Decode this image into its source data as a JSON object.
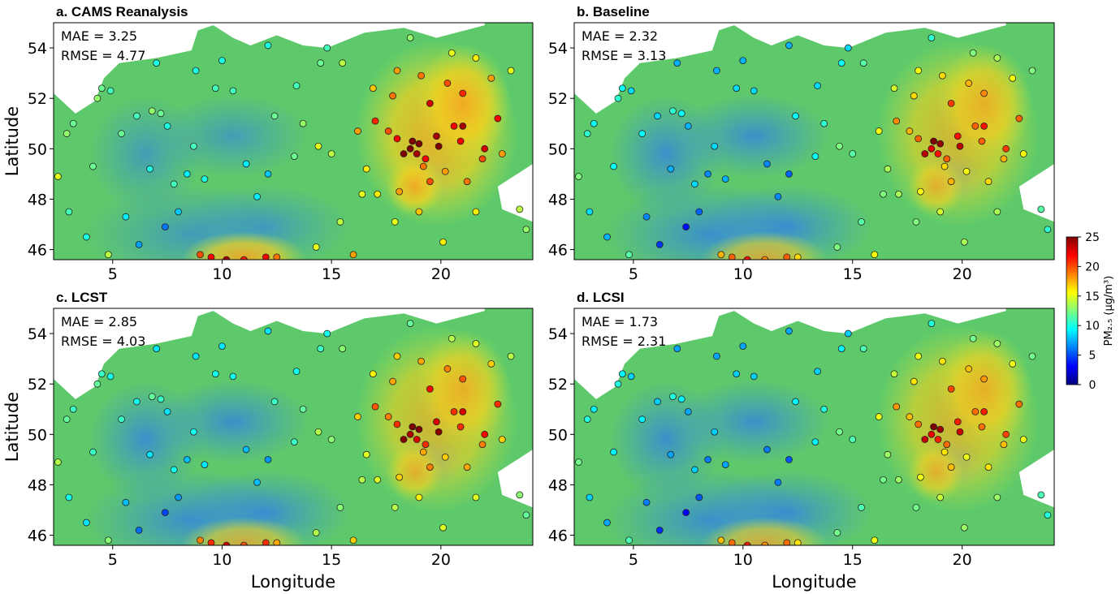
{
  "figure": {
    "x_axis_label": "Longitude",
    "y_axis_label": "Latitude",
    "lon_range": [
      2.3,
      24.2
    ],
    "lat_range": [
      45.6,
      55.0
    ],
    "lon_ticks": [
      5,
      10,
      15,
      20
    ],
    "lat_ticks": [
      46,
      48,
      50,
      52,
      54
    ],
    "colorbar": {
      "label": "PM₂.₅ (μg/m³)",
      "min": 0,
      "max": 25,
      "ticks": [
        0,
        5,
        10,
        15,
        20,
        25
      ],
      "colormap": "jet",
      "colors": [
        "#00007f",
        "#0000ff",
        "#007fff",
        "#00ffff",
        "#7fff7f",
        "#ffff00",
        "#ff7f00",
        "#ff0000",
        "#7f0000"
      ]
    },
    "base_colors": {
      "land_green": "#5ec96a",
      "low_blue": "#3d8ee0",
      "high_orange": "#f5a623",
      "sea": "#ffffff"
    }
  },
  "panels": [
    {
      "id": "a",
      "title": "a. CAMS Reanalysis",
      "mae_label": "MAE = 3.25",
      "rmse_label": "RMSE =  4.77",
      "mae": 3.25,
      "rmse": 4.77,
      "show_ylabel": true,
      "show_xlabel": false
    },
    {
      "id": "b",
      "title": "b. Baseline",
      "mae_label": "MAE = 2.32",
      "rmse_label": "RMSE =  3.13",
      "mae": 2.32,
      "rmse": 3.13,
      "show_ylabel": false,
      "show_xlabel": false
    },
    {
      "id": "c",
      "title": "c. LCST",
      "mae_label": "MAE = 2.85",
      "rmse_label": "RMSE =  4.03",
      "mae": 2.85,
      "rmse": 4.03,
      "show_ylabel": true,
      "show_xlabel": true
    },
    {
      "id": "d",
      "title": "d. LCSI",
      "mae_label": "MAE = 1.73",
      "rmse_label": "RMSE =  2.31",
      "mae": 1.73,
      "rmse": 2.31,
      "show_ylabel": false,
      "show_xlabel": true
    }
  ],
  "stations": [
    {
      "lon": 4.5,
      "lat": 52.4,
      "v": 12
    },
    {
      "lon": 4.3,
      "lat": 52.0,
      "v": 13
    },
    {
      "lon": 4.9,
      "lat": 52.3,
      "v": 11
    },
    {
      "lon": 3.2,
      "lat": 51.0,
      "v": 12
    },
    {
      "lon": 2.9,
      "lat": 50.6,
      "v": 13
    },
    {
      "lon": 2.5,
      "lat": 48.9,
      "v": 15
    },
    {
      "lon": 3.0,
      "lat": 47.5,
      "v": 11
    },
    {
      "lon": 3.8,
      "lat": 46.5,
      "v": 10
    },
    {
      "lon": 4.8,
      "lat": 45.8,
      "v": 14
    },
    {
      "lon": 5.4,
      "lat": 50.6,
      "v": 12
    },
    {
      "lon": 6.1,
      "lat": 51.3,
      "v": 11
    },
    {
      "lon": 6.8,
      "lat": 51.5,
      "v": 13
    },
    {
      "lon": 7.2,
      "lat": 51.4,
      "v": 12
    },
    {
      "lon": 7.5,
      "lat": 50.9,
      "v": 10
    },
    {
      "lon": 8.7,
      "lat": 50.1,
      "v": 11
    },
    {
      "lon": 8.4,
      "lat": 49.0,
      "v": 9
    },
    {
      "lon": 9.2,
      "lat": 48.8,
      "v": 10
    },
    {
      "lon": 11.6,
      "lat": 48.1,
      "v": 9
    },
    {
      "lon": 10.0,
      "lat": 53.5,
      "v": 10
    },
    {
      "lon": 13.4,
      "lat": 52.5,
      "v": 11
    },
    {
      "lon": 12.4,
      "lat": 51.3,
      "v": 12
    },
    {
      "lon": 13.7,
      "lat": 51.0,
      "v": 13
    },
    {
      "lon": 11.1,
      "lat": 49.4,
      "v": 9
    },
    {
      "lon": 12.1,
      "lat": 49.0,
      "v": 8
    },
    {
      "lon": 8.0,
      "lat": 47.5,
      "v": 8
    },
    {
      "lon": 7.4,
      "lat": 46.9,
      "v": 6
    },
    {
      "lon": 6.2,
      "lat": 46.2,
      "v": 7
    },
    {
      "lon": 9.0,
      "lat": 45.8,
      "v": 20
    },
    {
      "lon": 9.5,
      "lat": 45.7,
      "v": 22
    },
    {
      "lon": 10.2,
      "lat": 45.6,
      "v": 24
    },
    {
      "lon": 11.0,
      "lat": 45.6,
      "v": 21
    },
    {
      "lon": 12.0,
      "lat": 45.7,
      "v": 22
    },
    {
      "lon": 12.5,
      "lat": 45.7,
      "v": 19
    },
    {
      "lon": 16.4,
      "lat": 48.2,
      "v": 15
    },
    {
      "lon": 17.1,
      "lat": 48.2,
      "v": 16
    },
    {
      "lon": 15.4,
      "lat": 47.1,
      "v": 14
    },
    {
      "lon": 14.3,
      "lat": 46.1,
      "v": 15
    },
    {
      "lon": 16.0,
      "lat": 45.8,
      "v": 18
    },
    {
      "lon": 14.4,
      "lat": 50.1,
      "v": 15
    },
    {
      "lon": 16.6,
      "lat": 49.2,
      "v": 16
    },
    {
      "lon": 18.3,
      "lat": 49.8,
      "v": 26
    },
    {
      "lon": 18.7,
      "lat": 50.3,
      "v": 28
    },
    {
      "lon": 19.0,
      "lat": 50.2,
      "v": 27
    },
    {
      "lon": 19.9,
      "lat": 50.1,
      "v": 26
    },
    {
      "lon": 18.6,
      "lat": 50.0,
      "v": 25
    },
    {
      "lon": 18.9,
      "lat": 49.8,
      "v": 24
    },
    {
      "lon": 19.3,
      "lat": 49.6,
      "v": 22
    },
    {
      "lon": 21.0,
      "lat": 52.2,
      "v": 21
    },
    {
      "lon": 19.5,
      "lat": 51.8,
      "v": 23
    },
    {
      "lon": 17.0,
      "lat": 51.1,
      "v": 21
    },
    {
      "lon": 16.9,
      "lat": 52.4,
      "v": 17
    },
    {
      "lon": 18.6,
      "lat": 54.4,
      "v": 13
    },
    {
      "lon": 22.6,
      "lat": 51.2,
      "v": 22
    },
    {
      "lon": 22.0,
      "lat": 50.0,
      "v": 23
    },
    {
      "lon": 21.0,
      "lat": 50.9,
      "v": 24
    },
    {
      "lon": 20.6,
      "lat": 50.9,
      "v": 22
    },
    {
      "lon": 23.2,
      "lat": 53.1,
      "v": 15
    },
    {
      "lon": 18.0,
      "lat": 53.1,
      "v": 18
    },
    {
      "lon": 15.5,
      "lat": 53.4,
      "v": 14
    },
    {
      "lon": 14.5,
      "lat": 53.4,
      "v": 12
    },
    {
      "lon": 19.5,
      "lat": 48.7,
      "v": 20
    },
    {
      "lon": 21.2,
      "lat": 48.7,
      "v": 19
    },
    {
      "lon": 20.2,
      "lat": 49.1,
      "v": 18
    },
    {
      "lon": 18.1,
      "lat": 48.3,
      "v": 18
    },
    {
      "lon": 19.0,
      "lat": 47.5,
      "v": 17
    },
    {
      "lon": 21.6,
      "lat": 47.5,
      "v": 16
    },
    {
      "lon": 20.1,
      "lat": 46.3,
      "v": 16
    },
    {
      "lon": 23.6,
      "lat": 47.6,
      "v": 14
    },
    {
      "lon": 23.9,
      "lat": 46.8,
      "v": 13
    },
    {
      "lon": 17.9,
      "lat": 47.1,
      "v": 15
    },
    {
      "lon": 15.0,
      "lat": 49.8,
      "v": 14
    },
    {
      "lon": 13.3,
      "lat": 49.7,
      "v": 12
    },
    {
      "lon": 20.3,
      "lat": 52.6,
      "v": 20
    },
    {
      "lon": 22.3,
      "lat": 52.8,
      "v": 18
    },
    {
      "lon": 17.8,
      "lat": 52.1,
      "v": 19
    },
    {
      "lon": 19.1,
      "lat": 52.9,
      "v": 19
    },
    {
      "lon": 21.6,
      "lat": 53.6,
      "v": 16
    },
    {
      "lon": 20.5,
      "lat": 53.8,
      "v": 15
    },
    {
      "lon": 5.6,
      "lat": 47.3,
      "v": 9
    },
    {
      "lon": 4.1,
      "lat": 49.3,
      "v": 12
    },
    {
      "lon": 6.7,
      "lat": 49.2,
      "v": 10
    },
    {
      "lon": 7.8,
      "lat": 48.6,
      "v": 11
    },
    {
      "lon": 10.5,
      "lat": 52.3,
      "v": 11
    },
    {
      "lon": 9.7,
      "lat": 52.4,
      "v": 11
    },
    {
      "lon": 8.8,
      "lat": 53.1,
      "v": 10
    },
    {
      "lon": 7.0,
      "lat": 53.4,
      "v": 10
    },
    {
      "lon": 12.1,
      "lat": 54.1,
      "v": 10
    },
    {
      "lon": 14.8,
      "lat": 54.0,
      "v": 11
    },
    {
      "lon": 16.2,
      "lat": 50.7,
      "v": 18
    },
    {
      "lon": 17.6,
      "lat": 50.7,
      "v": 20
    },
    {
      "lon": 18.0,
      "lat": 50.4,
      "v": 22
    },
    {
      "lon": 19.8,
      "lat": 50.5,
      "v": 24
    },
    {
      "lon": 20.9,
      "lat": 50.3,
      "v": 22
    },
    {
      "lon": 19.2,
      "lat": 49.3,
      "v": 19
    },
    {
      "lon": 21.9,
      "lat": 49.6,
      "v": 20
    },
    {
      "lon": 22.8,
      "lat": 49.8,
      "v": 18
    }
  ]
}
